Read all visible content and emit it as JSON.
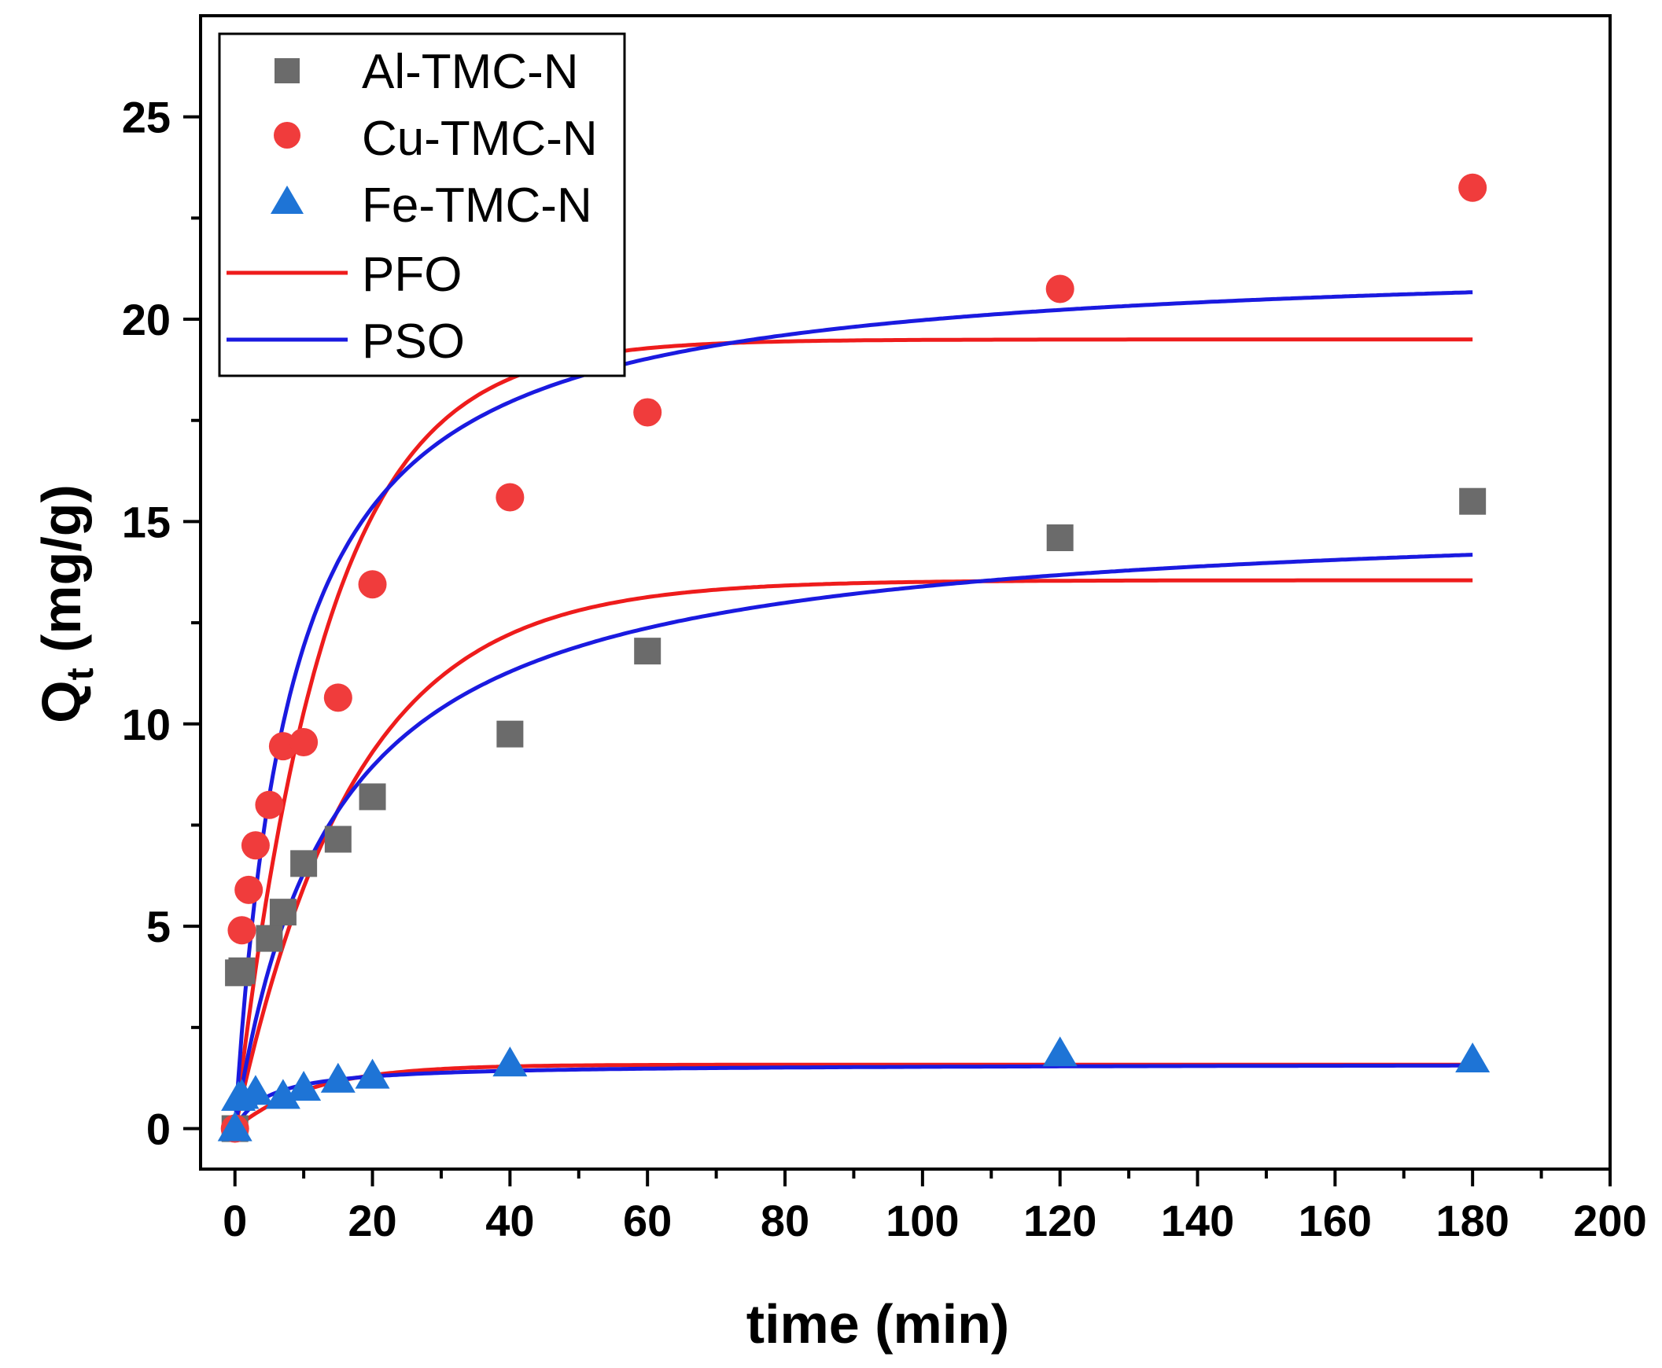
{
  "chart_data": {
    "type": "scatter",
    "xlabel": "time (min)",
    "ylabel_main": "Q",
    "ylabel_sub": "t",
    "ylabel_unit": " (mg/g)",
    "xlim": [
      -5,
      200
    ],
    "ylim": [
      -1,
      27.5
    ],
    "xticks": [
      0,
      20,
      40,
      60,
      80,
      100,
      120,
      140,
      160,
      180,
      200
    ],
    "yticks": [
      0,
      5,
      10,
      15,
      20,
      25
    ],
    "grid": false,
    "legend_position": "top-left",
    "series": [
      {
        "name": "Al-TMC-N",
        "marker": "square",
        "color": "#6b6b6b",
        "points": [
          [
            0,
            0
          ],
          [
            0.5,
            3.85
          ],
          [
            1,
            3.9
          ],
          [
            5,
            4.7
          ],
          [
            7,
            5.35
          ],
          [
            10,
            6.55
          ],
          [
            15,
            7.15
          ],
          [
            20,
            8.2
          ],
          [
            40,
            9.75
          ],
          [
            60,
            11.8
          ],
          [
            120,
            14.6
          ],
          [
            180,
            15.5
          ]
        ]
      },
      {
        "name": "Cu-TMC-N",
        "marker": "circle",
        "color": "#f03c3c",
        "points": [
          [
            0,
            0
          ],
          [
            1,
            4.9
          ],
          [
            2,
            5.9
          ],
          [
            3,
            7.0
          ],
          [
            5,
            8.0
          ],
          [
            7,
            9.45
          ],
          [
            10,
            9.55
          ],
          [
            15,
            10.65
          ],
          [
            20,
            13.45
          ],
          [
            40,
            15.6
          ],
          [
            60,
            17.7
          ],
          [
            120,
            20.75
          ],
          [
            180,
            23.25
          ]
        ]
      },
      {
        "name": "Fe-TMC-N",
        "marker": "triangle",
        "color": "#1e74d6",
        "points": [
          [
            0,
            0
          ],
          [
            0.5,
            0.75
          ],
          [
            1,
            0.8
          ],
          [
            3,
            0.9
          ],
          [
            7,
            0.8
          ],
          [
            10,
            1.0
          ],
          [
            15,
            1.2
          ],
          [
            20,
            1.3
          ],
          [
            40,
            1.6
          ],
          [
            120,
            1.85
          ],
          [
            180,
            1.7
          ]
        ]
      }
    ],
    "fits": [
      {
        "name": "PFO",
        "color": "#ee1c1c",
        "model": "pfo",
        "curves": [
          {
            "of": "Al-TMC-N",
            "qe": 13.55,
            "k": 0.058
          },
          {
            "of": "Cu-TMC-N",
            "qe": 19.5,
            "k": 0.075
          },
          {
            "of": "Fe-TMC-N",
            "qe": 1.58,
            "k": 0.09
          }
        ]
      },
      {
        "name": "PSO",
        "color": "#1a1ae0",
        "model": "pso",
        "curves": [
          {
            "of": "Al-TMC-N",
            "qe": 15.3,
            "k": 0.0046
          },
          {
            "of": "Cu-TMC-N",
            "qe": 21.6,
            "k": 0.0057
          },
          {
            "of": "Fe-TMC-N",
            "qe": 1.6,
            "k": 0.13
          }
        ]
      }
    ]
  }
}
